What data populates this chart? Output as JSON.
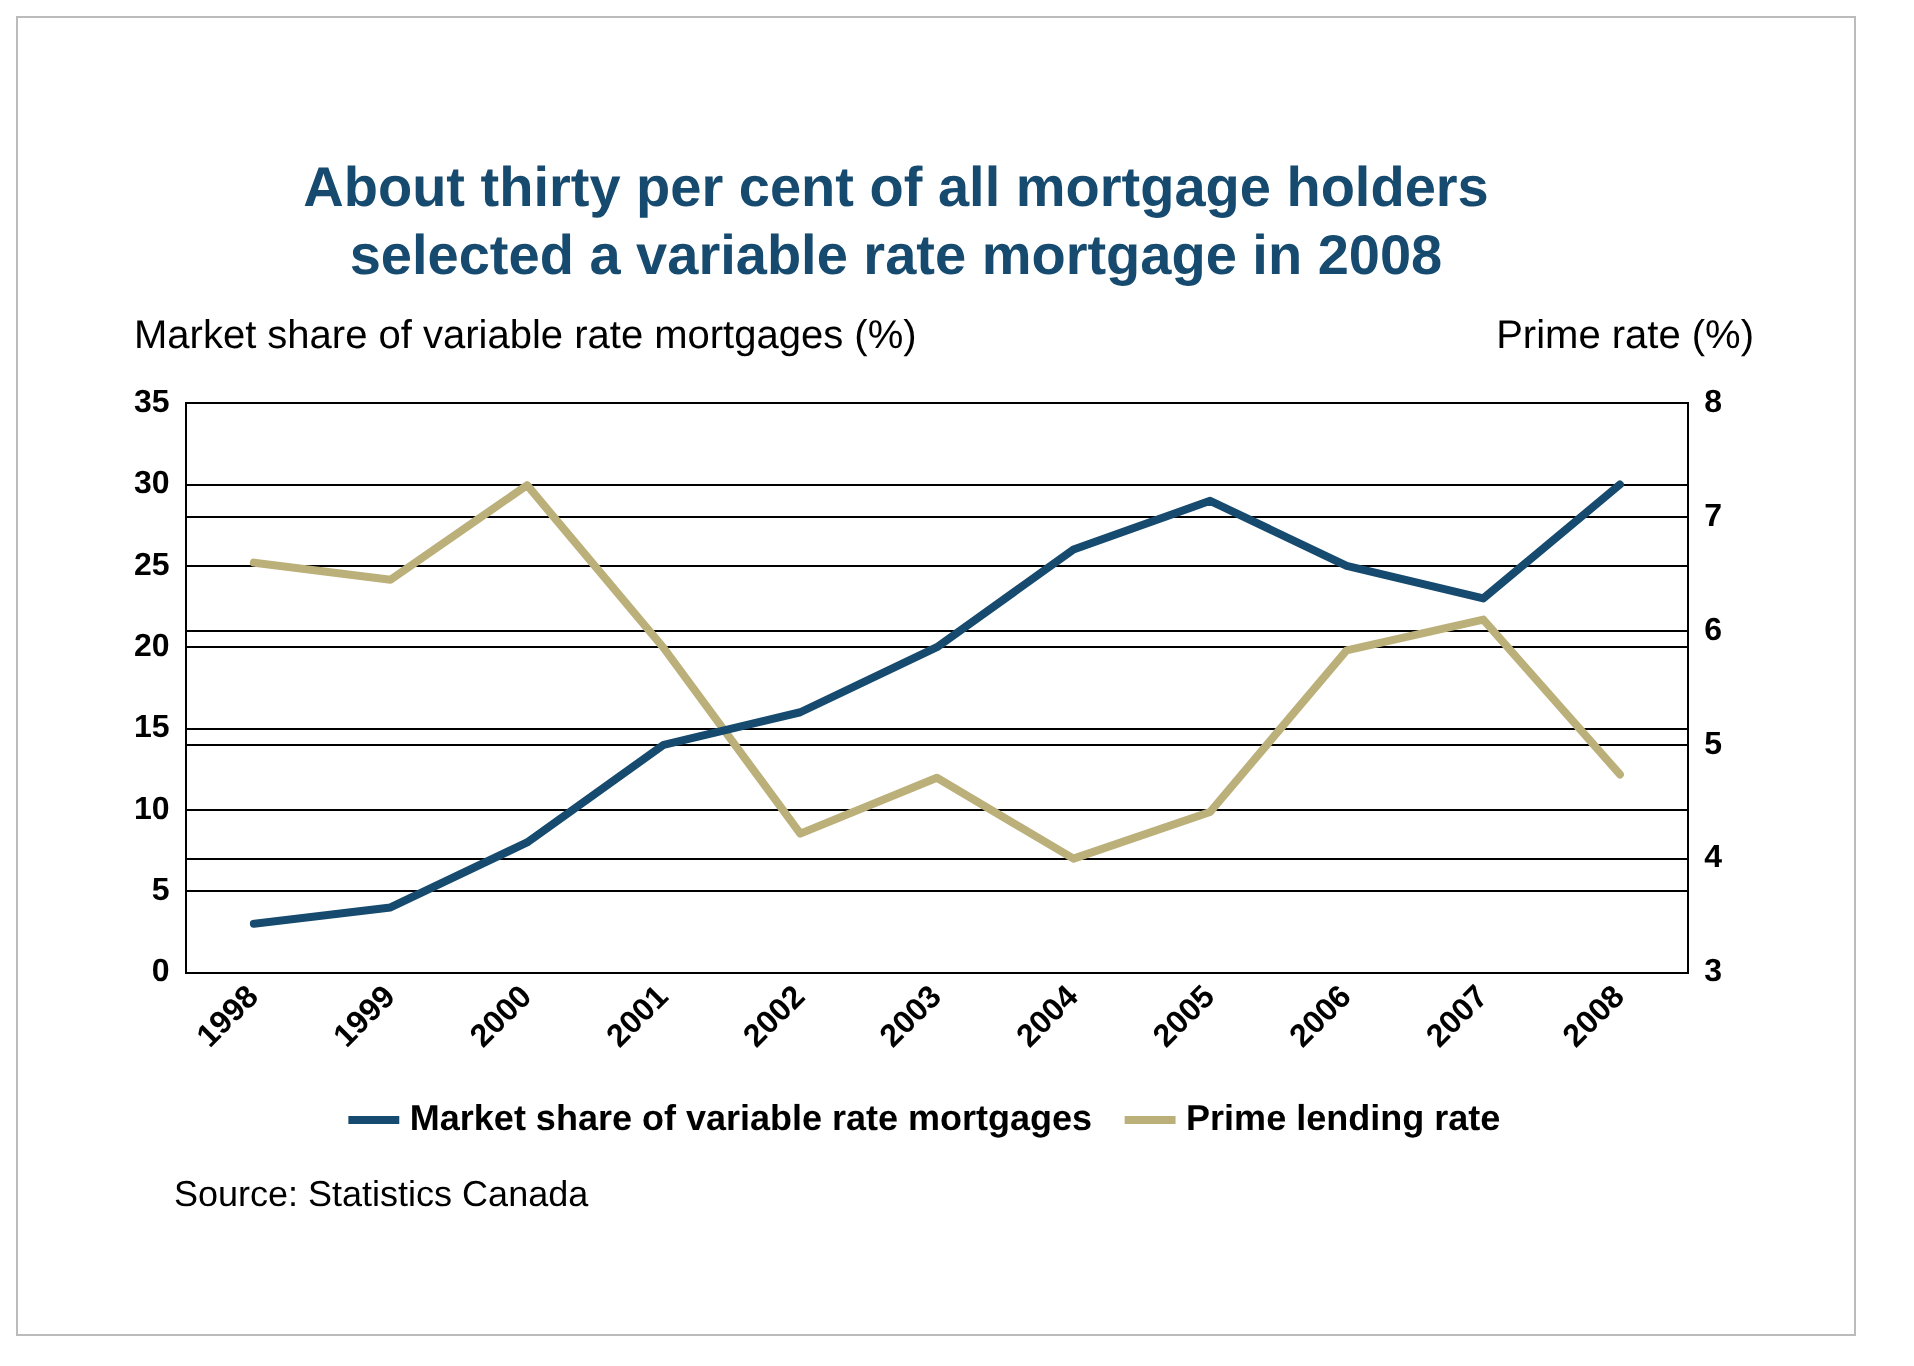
{
  "chart_data": {
    "type": "line",
    "title": "About thirty per cent of all mortgage holders selected a variable rate mortgage in 2008",
    "ylabel": "Market share of variable rate mortgages (%)",
    "y2label": "Prime rate (%)",
    "categories": [
      "1998",
      "1999",
      "2000",
      "2001",
      "2002",
      "2003",
      "2004",
      "2005",
      "2006",
      "2007",
      "2008"
    ],
    "series": [
      {
        "name": "Market share of variable rate mortgages",
        "color": "#164a6e",
        "values": [
          3,
          4,
          8,
          14,
          16,
          20,
          26,
          29,
          25,
          23,
          30
        ]
      },
      {
        "name": "Prime lending rate",
        "color": "#bcb07a",
        "axis": "y2",
        "values": [
          6.6,
          6.45,
          7.28,
          5.85,
          4.22,
          4.71,
          4.0,
          4.41,
          5.83,
          6.1,
          4.74
        ]
      }
    ],
    "ylim": [
      0,
      35
    ],
    "yticks": [
      0,
      5,
      10,
      15,
      20,
      25,
      30,
      35
    ],
    "y2lim": [
      3,
      8
    ],
    "y2ticks": [
      3,
      4,
      5,
      6,
      7,
      8
    ],
    "grid": "y",
    "legend": "bottom",
    "marker": "none",
    "line_style": "solid",
    "annotations": [
      "Source: Statistics Canada"
    ]
  }
}
